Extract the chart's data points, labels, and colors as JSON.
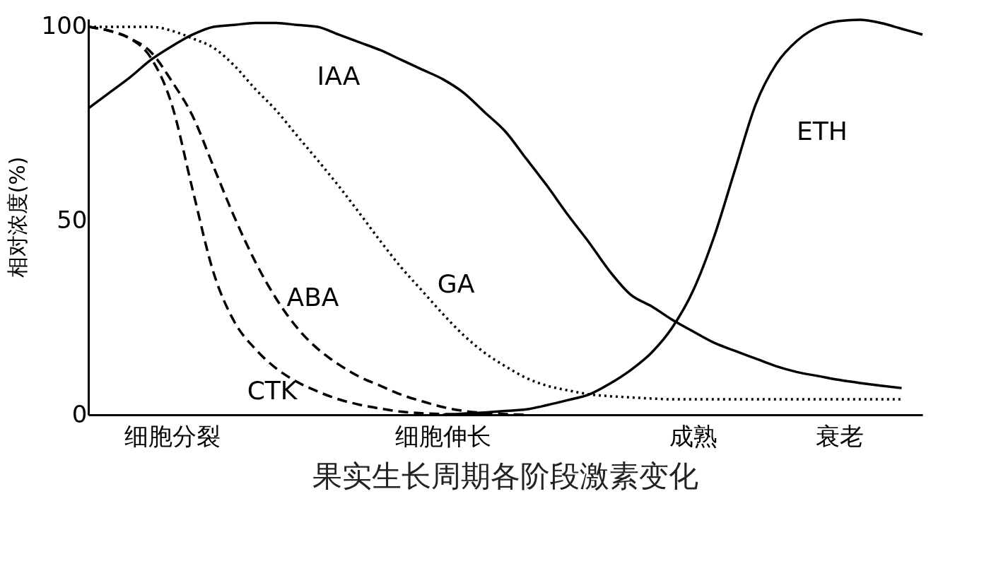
{
  "chart_data": {
    "type": "line",
    "title": "果实生长周期各阶段激素变化",
    "ylabel": "相对浓度(%)",
    "categories": [
      null,
      null,
      null,
      null,
      "细胞分裂",
      null,
      null,
      null,
      null,
      null,
      null,
      null,
      null,
      null,
      null,
      null,
      null,
      "细胞伸长",
      null,
      null,
      null,
      null,
      null,
      null,
      null,
      null,
      null,
      null,
      null,
      "成熟",
      null,
      null,
      null,
      null,
      null,
      null,
      "衰老",
      null,
      null,
      null,
      null
    ],
    "ylim": [
      0,
      102
    ],
    "yticks": [
      0,
      50,
      100
    ],
    "grid": false,
    "legend": false,
    "series": [
      {
        "name": "IAA",
        "color": "#000000",
        "line_style": "solid",
        "values": [
          79,
          83,
          87,
          91.5,
          95,
          98,
          100,
          100.5,
          101,
          101,
          100.5,
          100,
          98,
          96,
          94,
          91.5,
          89,
          86.5,
          83,
          78,
          73,
          66,
          59,
          51.5,
          44.5,
          37,
          31,
          28,
          24.5,
          21.5,
          18.6,
          16.5,
          14.5,
          12.5,
          11,
          10,
          9,
          8.2,
          7.5,
          6.9,
          null
        ]
      },
      {
        "name": "GA",
        "color": "#000000",
        "line_style": "dotted",
        "values": [
          100,
          100,
          100,
          100,
          99,
          97,
          94.6,
          90,
          84,
          78.5,
          72,
          65.6,
          59,
          52,
          44.8,
          38,
          32,
          26,
          20.5,
          16,
          12.5,
          9.5,
          7.5,
          6.3,
          5.3,
          4.8,
          4.5,
          4.2,
          4,
          4,
          4,
          4,
          4,
          4,
          4,
          4,
          4,
          4,
          4,
          4,
          null
        ]
      },
      {
        "name": "CTK",
        "color": "#000000",
        "line_style": "dashed",
        "values": [
          100,
          99,
          97,
          92,
          80,
          58,
          36.7,
          24,
          17,
          12,
          8.5,
          6,
          4,
          2.6,
          1.6,
          0.8,
          0.4,
          0.2,
          0.1,
          0,
          null,
          null,
          null,
          null,
          null,
          null,
          null,
          null,
          null,
          null,
          null,
          null,
          null,
          null,
          null,
          null,
          null,
          null,
          null,
          null,
          null
        ]
      },
      {
        "name": "ABA",
        "color": "#000000",
        "line_style": "dashed",
        "values": [
          100,
          99,
          97,
          93.5,
          86,
          77,
          64,
          51,
          39.5,
          30,
          22.5,
          17,
          13,
          9.8,
          7.5,
          5.2,
          3.5,
          2,
          1,
          0.5,
          0.2,
          0,
          null,
          null,
          null,
          null,
          null,
          null,
          null,
          null,
          null,
          null,
          null,
          null,
          null,
          null,
          null,
          null,
          null,
          null,
          null
        ]
      },
      {
        "name": "ETH",
        "color": "#000000",
        "line_style": "solid",
        "values": [
          null,
          null,
          null,
          null,
          null,
          null,
          null,
          null,
          null,
          null,
          null,
          null,
          null,
          null,
          null,
          null,
          null,
          0,
          0.3,
          0.6,
          1,
          1.4,
          2.5,
          3.8,
          5.2,
          8,
          11.5,
          16,
          22.5,
          32,
          45.8,
          63,
          80,
          90.5,
          96.5,
          100,
          101.5,
          101.8,
          101,
          99.5,
          98
        ]
      }
    ]
  }
}
